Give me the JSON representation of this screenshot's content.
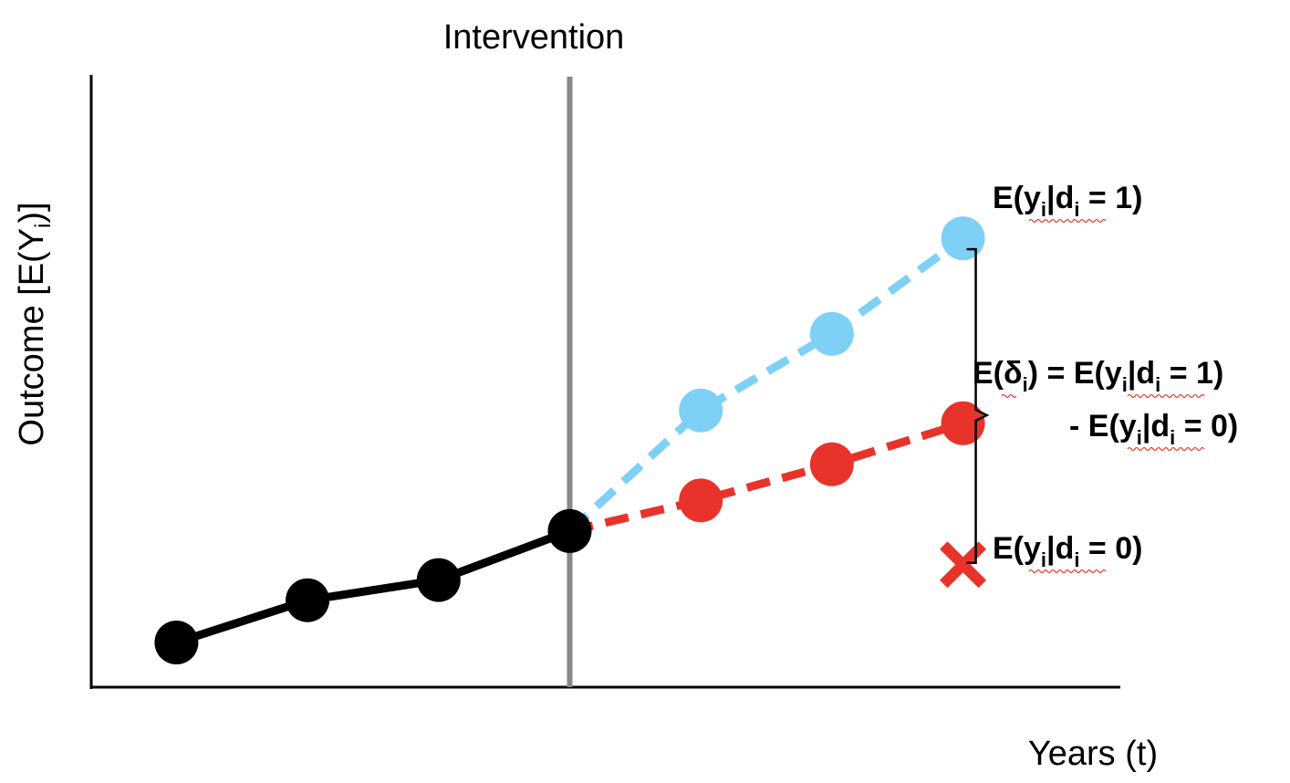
{
  "chart_data": {
    "type": "line",
    "title": "Intervention",
    "xlabel": "Years (t)",
    "ylabel": "Outcome [E(Y",
    "ylabel_sub": "i",
    "ylabel_close": ")]",
    "x": [
      1,
      2,
      3,
      4,
      5,
      6,
      7
    ],
    "xlim": [
      0.35,
      8.2
    ],
    "ylim": [
      0,
      10
    ],
    "intervention_x": 4,
    "series": [
      {
        "color": "#000000",
        "dashed": false,
        "x": [
          1,
          2,
          3,
          4
        ],
        "values": [
          0.73,
          1.42,
          1.75,
          2.55
        ]
      },
      {
        "color": "#7fd0f5",
        "dashed": true,
        "x": [
          4,
          5,
          6,
          7
        ],
        "values": [
          2.55,
          4.52,
          5.77,
          7.33
        ]
      },
      {
        "color": "#e8332a",
        "dashed": true,
        "x": [
          4,
          5,
          6,
          7
        ],
        "values": [
          2.55,
          3.05,
          3.64,
          4.31
        ]
      }
    ],
    "counterfactual_marker": {
      "x": 7,
      "value": 2.0,
      "color": "#e8332a",
      "shape": "x"
    },
    "bracket": {
      "x": 7,
      "from": 2.0,
      "to": 7.33
    },
    "annotations": {
      "treated": {
        "pre": "E(",
        "v": "y",
        "sub1": "i",
        "bar": "|",
        "d": "d",
        "sub2": "i",
        "post": " = 1)"
      },
      "untreated": {
        "pre": "E(",
        "v": "y",
        "sub1": "i",
        "bar": "|",
        "d": "d",
        "sub2": "i",
        "post": " = 0)"
      },
      "effect_line1": {
        "pre": "E(δ",
        "sub0": "i",
        "mid": ") = E(",
        "v": "y",
        "sub1": "i",
        "bar": "|",
        "d": "d",
        "sub2": "i",
        "post": " = 1)"
      },
      "effect_line2": {
        "pre": "- E(",
        "v": "y",
        "sub1": "i",
        "bar": "|",
        "d": "d",
        "sub2": "i",
        "post": " = 0)"
      }
    },
    "grid": false,
    "legend": "none"
  }
}
